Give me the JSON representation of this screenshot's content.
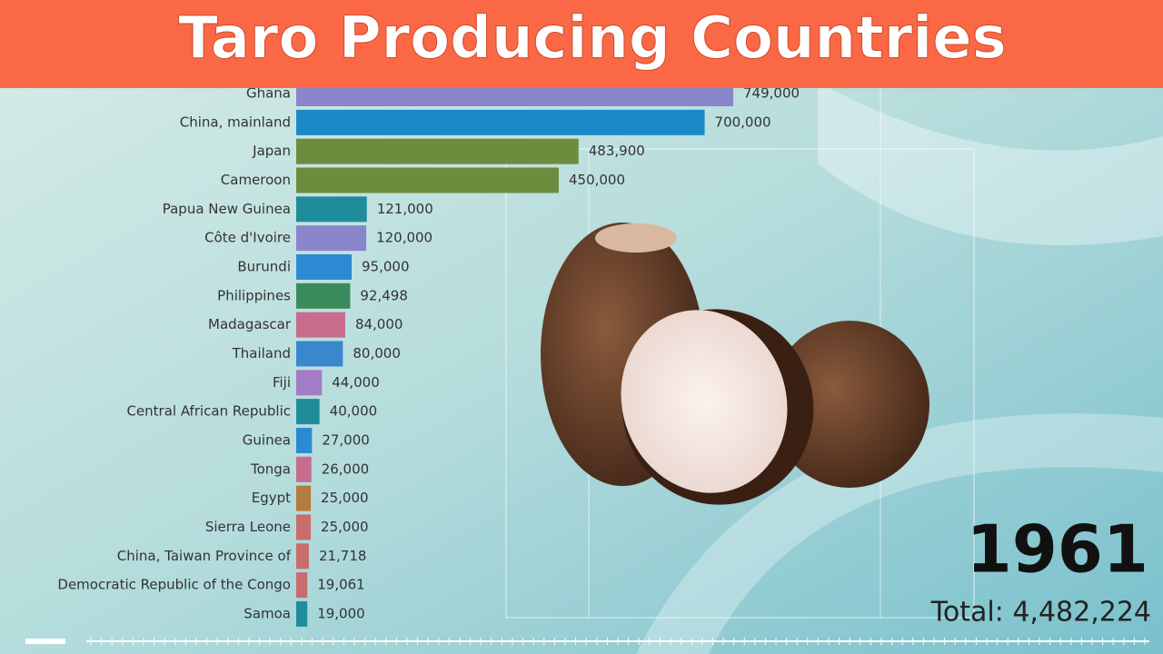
{
  "chart_data": {
    "type": "bar",
    "orientation": "horizontal",
    "title": "Taro Producing Countries",
    "categories": [
      "Ghana",
      "China, mainland",
      "Japan",
      "Cameroon",
      "Papua New Guinea",
      "Côte d'Ivoire",
      "Burundi",
      "Philippines",
      "Madagascar",
      "Thailand",
      "Fiji",
      "Central African Republic",
      "Guinea",
      "Tonga",
      "Egypt",
      "Sierra Leone",
      "China, Taiwan Province of",
      "Democratic Republic of the Congo",
      "Samoa"
    ],
    "values": [
      749000,
      700000,
      483900,
      450000,
      121000,
      120000,
      95000,
      92498,
      84000,
      80000,
      44000,
      40000,
      27000,
      26000,
      25000,
      25000,
      21718,
      19061,
      19000
    ],
    "value_labels": [
      "749,000",
      "700,000",
      "483,900",
      "450,000",
      "121,000",
      "120,000",
      "95,000",
      "92,498",
      "84,000",
      "80,000",
      "44,000",
      "40,000",
      "27,000",
      "26,000",
      "25,000",
      "25,000",
      "21,718",
      "19,061",
      "19,000"
    ],
    "colors": [
      "#8a86cc",
      "#1a8ac6",
      "#6d8c3e",
      "#6d8c3e",
      "#1f8c9c",
      "#8a86cc",
      "#2b8ad2",
      "#3a8c5c",
      "#c86c8e",
      "#3a88cc",
      "#a47cc6",
      "#1f8c9c",
      "#2b8ad2",
      "#c86c8e",
      "#b57a40",
      "#c86c6c",
      "#c86c6c",
      "#c86c6c",
      "#1f8c9c"
    ],
    "year": "1961",
    "total": 4482224,
    "total_label": "Total: 4,482,224"
  }
}
